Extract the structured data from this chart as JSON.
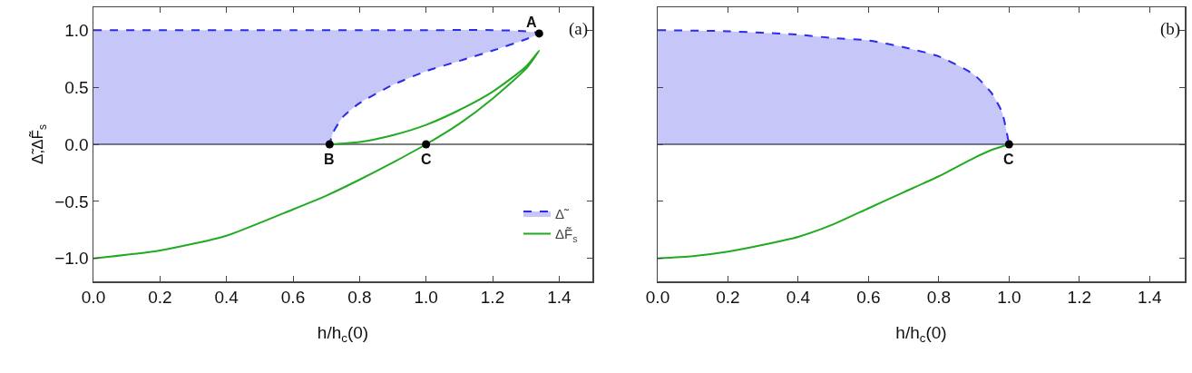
{
  "chart_data": [
    {
      "type": "line",
      "xlabel": "h/h$_{c}$(0)",
      "ylabel": "Δ̃,ΔF̃$_{s}$",
      "xlim": [
        0,
        1.5
      ],
      "xticks": [
        {
          "value": 0,
          "label": "0.0"
        },
        {
          "value": 0.2,
          "label": "0.2"
        },
        {
          "value": 0.4,
          "label": "0.4"
        },
        {
          "value": 0.6,
          "label": "0.6"
        },
        {
          "value": 0.8,
          "label": "0.8"
        },
        {
          "value": 1,
          "label": "1.0"
        },
        {
          "value": 1.2,
          "label": "1.2"
        },
        {
          "value": 1.4,
          "label": "1.4"
        }
      ],
      "ylim": [
        -1.2,
        1.2
      ],
      "yticks": [
        {
          "value": -1,
          "label": "−1.0"
        },
        {
          "value": -0.5,
          "label": "−0.5"
        },
        {
          "value": 0,
          "label": "0.0"
        },
        {
          "value": 0.5,
          "label": "0.5"
        },
        {
          "value": 1,
          "label": "1.0"
        }
      ],
      "legend": "bottom right",
      "series": [
        {
          "name": "Δ̃",
          "type": "area",
          "color": "#2b2bea",
          "line_style": "dashed",
          "x": [
            0,
            0.2,
            0.4,
            0.6,
            0.8,
            1.0,
            1.2,
            1.3,
            1.34,
            1.3,
            1.2,
            1.1,
            1.0,
            0.9,
            0.8,
            0.75,
            0.72,
            0.71
          ],
          "values": [
            1,
            1,
            1,
            1,
            1,
            1,
            1,
            0.99,
            0.97,
            0.92,
            0.82,
            0.73,
            0.64,
            0.52,
            0.36,
            0.24,
            0.1,
            0
          ]
        },
        {
          "name": "ΔF̃$_{s}$",
          "color": "#22aa22",
          "line_style": "solid",
          "x": [
            0,
            0.2,
            0.4,
            0.6,
            0.7,
            0.8,
            0.9,
            1.0,
            1.1,
            1.2,
            1.3,
            1.34,
            1.3,
            1.2,
            1.1,
            1.0,
            0.9,
            0.8,
            0.71
          ],
          "values": [
            -1,
            -0.93,
            -0.8,
            -0.57,
            -0.45,
            -0.31,
            -0.16,
            0,
            0.18,
            0.4,
            0.66,
            0.82,
            0.68,
            0.46,
            0.3,
            0.17,
            0.08,
            0.02,
            0
          ]
        },
        {
          "type": "scatter",
          "color": "#000000",
          "marker": "circle",
          "x": [
            1.34,
            0.71,
            1.0
          ],
          "values": [
            0.97,
            0,
            0
          ]
        }
      ],
      "ref_lines": [
        {
          "axis": "y",
          "value": 0,
          "color": "#000000"
        }
      ],
      "annotations": [
        {
          "text": "A",
          "x": 1.34,
          "y": 0.97
        },
        {
          "text": "B",
          "x": 0.71,
          "y": 0
        },
        {
          "text": "C",
          "x": 1.0,
          "y": 0
        },
        "(a)"
      ]
    },
    {
      "type": "line",
      "xlabel": "h/h$_{c}$(0)",
      "xlim": [
        0,
        1.5
      ],
      "xticks": [
        {
          "value": 0,
          "label": "0.0"
        },
        {
          "value": 0.2,
          "label": "0.2"
        },
        {
          "value": 0.4,
          "label": "0.4"
        },
        {
          "value": 0.6,
          "label": "0.6"
        },
        {
          "value": 0.8,
          "label": "0.8"
        },
        {
          "value": 1,
          "label": "1.0"
        },
        {
          "value": 1.2,
          "label": "1.2"
        },
        {
          "value": 1.4,
          "label": "1.4"
        }
      ],
      "ylim": [
        -1.2,
        1.2
      ],
      "yticks": [
        {
          "value": -1,
          "label": null
        },
        {
          "value": -0.5,
          "label": null
        },
        {
          "value": 0,
          "label": null
        },
        {
          "value": 0.5,
          "label": null
        },
        {
          "value": 1,
          "label": null
        }
      ],
      "tick_labels": "x",
      "series": [
        {
          "type": "area",
          "color": "#2b2bea",
          "line_style": "dashed",
          "x": [
            0,
            0.2,
            0.4,
            0.5,
            0.6,
            0.7,
            0.8,
            0.9,
            0.95,
            0.98,
            1.0
          ],
          "values": [
            1,
            0.99,
            0.96,
            0.93,
            0.91,
            0.85,
            0.77,
            0.61,
            0.45,
            0.28,
            0
          ]
        },
        {
          "color": "#22aa22",
          "line_style": "solid",
          "x": [
            0,
            0.1,
            0.2,
            0.3,
            0.4,
            0.5,
            0.6,
            0.7,
            0.8,
            0.9,
            0.95,
            1.0
          ],
          "values": [
            -1,
            -0.98,
            -0.94,
            -0.88,
            -0.81,
            -0.7,
            -0.56,
            -0.42,
            -0.28,
            -0.12,
            -0.05,
            0
          ]
        },
        {
          "type": "scatter",
          "color": "#000000",
          "marker": "circle",
          "x": [
            1.0
          ],
          "values": [
            0
          ]
        }
      ],
      "ref_lines": [
        {
          "axis": "y",
          "value": 0,
          "color": "#000000"
        }
      ],
      "annotations": [
        {
          "text": "C",
          "x": 1.0,
          "y": 0
        },
        "(b)"
      ]
    }
  ]
}
